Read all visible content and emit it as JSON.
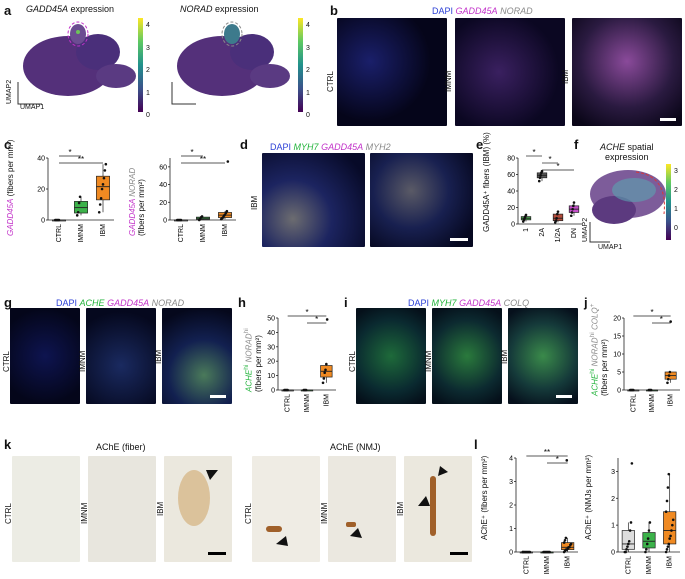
{
  "panels": {
    "a": {
      "label": "a",
      "title1": "GADD45A",
      "title1_suffix": " expression",
      "title2": "NORAD",
      "title2_suffix": " expression",
      "umap1": "UMAP1",
      "umap2": "UMAP2",
      "ticks": [
        "4",
        "3",
        "2",
        "1",
        "0"
      ]
    },
    "b": {
      "label": "b",
      "legend_dapi": "DAPI",
      "legend_g": "GADD45A",
      "legend_n": "NORAD",
      "rows": [
        "CTRL",
        "IMNM",
        "IBM"
      ]
    },
    "c": {
      "label": "c",
      "chart_left_ylabel_gene": "GADD45A",
      "chart_left_ylabel_rest": " (fibers per mm²)",
      "chart_right_ylabel_line1a": "GADD45A",
      "chart_right_ylabel_line1b": " NORAD",
      "chart_right_ylabel_line2": "(fibers per mm²)"
    },
    "d": {
      "label": "d",
      "leg_dapi": "DAPI",
      "leg_myh7": "MYH7",
      "leg_gadd": "GADD45A",
      "leg_myh2": "MYH2",
      "row": "IBM"
    },
    "e": {
      "label": "e",
      "ylabel": "GADD45A⁺ fibers (IBM) (%)"
    },
    "f": {
      "label": "f",
      "title1": "ACHE",
      "title2": " spatial",
      "title3": "expression",
      "umap1": "UMAP1",
      "umap2": "UMAP2",
      "ticks": [
        "3",
        "2",
        "1",
        "0"
      ]
    },
    "g": {
      "label": "g",
      "leg_dapi": "DAPI",
      "leg_ache": "ACHE",
      "leg_gadd": "GADD45A",
      "leg_norad": "NORAD",
      "rows": [
        "CTRL",
        "IMNM",
        "IBM"
      ]
    },
    "h": {
      "label": "h",
      "ylabel_a": "ACHE",
      "ylabel_b": "hi",
      "ylabel_c": " NORAD",
      "ylabel_d": "hi",
      "ylabel2": "(fibers per mm²)"
    },
    "i": {
      "label": "i",
      "leg_dapi": "DAPI",
      "leg_myh7": "MYH7",
      "leg_gadd": "GADD45A",
      "leg_colq": "COLQ",
      "rows": [
        "CTRL",
        "IMNM",
        "IBM"
      ]
    },
    "j": {
      "label": "j",
      "ylabel_a": "ACHE",
      "ylabel_b": "hi",
      "ylabel_c": " NORAD",
      "ylabel_d": "hi",
      "ylabel_e": " COLQ",
      "ylabel_f": "+",
      "ylabel2": "(fibers per mm²)"
    },
    "k": {
      "label": "k",
      "title_fiber": "AChE (fiber)",
      "title_nmj": "AChE (NMJ)",
      "rows": [
        "CTRL",
        "IMNM",
        "IBM"
      ]
    },
    "l": {
      "label": "l",
      "ylabel_left": "AChE⁺ (fibers per mm²)",
      "ylabel_right": "AChE⁺ (NMJs per mm²)"
    }
  },
  "colors": {
    "dapi": "#2c40d6",
    "magenta": "#c232c9",
    "green": "#22b33b",
    "grey": "#8a8a8a",
    "ctrl": "#dddddd",
    "imnm": "#3cb24a",
    "ibm": "#f08a22",
    "e_1": "#4cb050",
    "e_2a": "#5a5a5a",
    "e_12a": "#b34b3b",
    "e_dn": "#c450c9"
  },
  "chart_data": [
    {
      "type": "box",
      "panel": "c-left",
      "categories": [
        "CTRL",
        "IMNM",
        "IBM"
      ],
      "ylim": [
        0,
        40
      ],
      "yticks": [
        0,
        20,
        40
      ],
      "points": {
        "CTRL": [
          0,
          0,
          0,
          0,
          0
        ],
        "IMNM": [
          3,
          5,
          11,
          15
        ],
        "IBM": [
          5,
          10,
          14,
          20,
          23,
          27,
          32,
          36
        ]
      },
      "sig": [
        {
          "from": "CTRL",
          "to": "IMNM",
          "label": "*"
        },
        {
          "from": "CTRL",
          "to": "IBM",
          "label": "**"
        }
      ]
    },
    {
      "type": "box",
      "panel": "c-right",
      "categories": [
        "CTRL",
        "IMNM",
        "IBM"
      ],
      "ylim": [
        0,
        70
      ],
      "yticks": [
        0,
        20,
        40,
        60
      ],
      "points": {
        "CTRL": [
          0,
          0,
          0,
          0,
          0
        ],
        "IMNM": [
          0,
          1,
          3,
          4
        ],
        "IBM": [
          1,
          2,
          3,
          5,
          6,
          8,
          10,
          66
        ]
      },
      "sig": [
        {
          "from": "CTRL",
          "to": "IMNM",
          "label": "*"
        },
        {
          "from": "CTRL",
          "to": "IBM",
          "label": "**"
        }
      ]
    },
    {
      "type": "box",
      "panel": "e",
      "categories": [
        "1",
        "2A",
        "1/2A",
        "DN"
      ],
      "ylim": [
        0,
        80
      ],
      "yticks": [
        0,
        20,
        40,
        60,
        80
      ],
      "points": {
        "1": [
          3,
          5,
          7,
          9,
          11
        ],
        "2A": [
          52,
          56,
          59,
          62,
          64
        ],
        "1/2A": [
          2,
          4,
          7,
          12,
          15
        ],
        "DN": [
          10,
          14,
          18,
          22,
          26
        ]
      },
      "sig": [
        {
          "from": "1",
          "to": "2A",
          "label": "*"
        },
        {
          "from": "2A",
          "to": "1/2A",
          "label": "*"
        },
        {
          "from": "2A",
          "to": "DN",
          "label": "*"
        }
      ]
    },
    {
      "type": "box",
      "panel": "h",
      "categories": [
        "CTRL",
        "IMNM",
        "IBM"
      ],
      "ylim": [
        0,
        50
      ],
      "yticks": [
        0,
        10,
        20,
        30,
        40,
        50
      ],
      "points": {
        "CTRL": [
          0,
          0,
          0,
          0,
          0
        ],
        "IMNM": [
          0,
          0,
          0,
          0
        ],
        "IBM": [
          5,
          8,
          12,
          14,
          18,
          49
        ]
      },
      "sig": [
        {
          "from": "CTRL",
          "to": "IBM",
          "label": "*"
        },
        {
          "from": "IMNM",
          "to": "IBM",
          "label": "*"
        }
      ]
    },
    {
      "type": "box",
      "panel": "j",
      "categories": [
        "CTRL",
        "IMNM",
        "IBM"
      ],
      "ylim": [
        0,
        20
      ],
      "yticks": [
        0,
        5,
        10,
        15,
        20
      ],
      "points": {
        "CTRL": [
          0,
          0,
          0,
          0,
          0
        ],
        "IMNM": [
          0,
          0,
          0,
          0
        ],
        "IBM": [
          2,
          3,
          4,
          5,
          19
        ]
      },
      "sig": [
        {
          "from": "CTRL",
          "to": "IBM",
          "label": "*"
        },
        {
          "from": "IMNM",
          "to": "IBM",
          "label": "*"
        }
      ]
    },
    {
      "type": "box",
      "panel": "l-left",
      "categories": [
        "CTRL",
        "IMNM",
        "IBM"
      ],
      "ylim": [
        0,
        4
      ],
      "yticks": [
        0,
        1,
        2,
        3,
        4
      ],
      "points": {
        "CTRL": [
          0,
          0,
          0,
          0,
          0,
          0,
          0,
          0,
          0,
          0
        ],
        "IMNM": [
          0,
          0,
          0,
          0,
          0,
          0,
          0,
          0
        ],
        "IBM": [
          0,
          0.05,
          0.1,
          0.1,
          0.15,
          0.2,
          0.2,
          0.3,
          0.35,
          0.4,
          0.5,
          0.6,
          3.9
        ]
      },
      "sig": [
        {
          "from": "CTRL",
          "to": "IBM",
          "label": "**"
        },
        {
          "from": "IMNM",
          "to": "IBM",
          "label": "*"
        }
      ]
    },
    {
      "type": "box",
      "panel": "l-right",
      "categories": [
        "CTRL",
        "IMNM",
        "IBM"
      ],
      "ylim": [
        0,
        3.5
      ],
      "yticks": [
        0,
        1,
        2,
        3
      ],
      "points": {
        "CTRL": [
          0,
          0,
          0.1,
          0.2,
          0.3,
          0.4,
          0.8,
          1.1,
          3.3
        ],
        "IMNM": [
          0,
          0.1,
          0.3,
          0.5,
          0.8,
          1.1
        ],
        "IBM": [
          0,
          0.1,
          0.2,
          0.3,
          0.5,
          0.6,
          0.8,
          1.0,
          1.2,
          1.5,
          1.9,
          2.4,
          2.9
        ]
      },
      "sig": []
    }
  ]
}
